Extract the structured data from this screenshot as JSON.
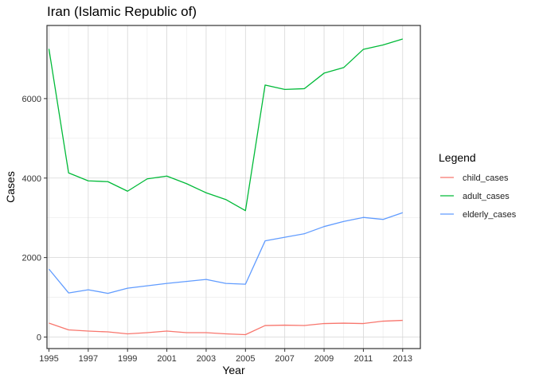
{
  "chart_data": {
    "type": "line",
    "title": "Iran (Islamic Republic of)",
    "xlabel": "Year",
    "ylabel": "Cases",
    "x": [
      1995,
      1996,
      1997,
      1998,
      1999,
      2000,
      2001,
      2002,
      2003,
      2004,
      2005,
      2006,
      2007,
      2008,
      2009,
      2010,
      2011,
      2012,
      2013
    ],
    "xlim": [
      1994.9,
      2013.9
    ],
    "ylim": [
      -290,
      7840
    ],
    "x_ticks": [
      1995,
      1997,
      1999,
      2001,
      2003,
      2005,
      2007,
      2009,
      2011,
      2013
    ],
    "y_ticks": [
      0,
      2000,
      4000,
      6000
    ],
    "grid": true,
    "legend": {
      "title": "Legend",
      "position": "right"
    },
    "series": [
      {
        "name": "child_cases",
        "color": "#F8766D",
        "values": [
          350,
          180,
          150,
          130,
          80,
          110,
          150,
          110,
          110,
          80,
          60,
          290,
          300,
          290,
          340,
          350,
          340,
          400,
          420
        ]
      },
      {
        "name": "adult_cases",
        "color": "#00BA38",
        "values": [
          7250,
          4130,
          3930,
          3910,
          3670,
          3980,
          4050,
          3860,
          3630,
          3460,
          3180,
          6340,
          6230,
          6250,
          6640,
          6780,
          7240,
          7350,
          7500
        ]
      },
      {
        "name": "elderly_cases",
        "color": "#619CFF",
        "values": [
          1710,
          1110,
          1190,
          1100,
          1230,
          1290,
          1350,
          1400,
          1450,
          1350,
          1330,
          2420,
          2510,
          2600,
          2780,
          2910,
          3010,
          2960,
          3130
        ]
      }
    ]
  }
}
